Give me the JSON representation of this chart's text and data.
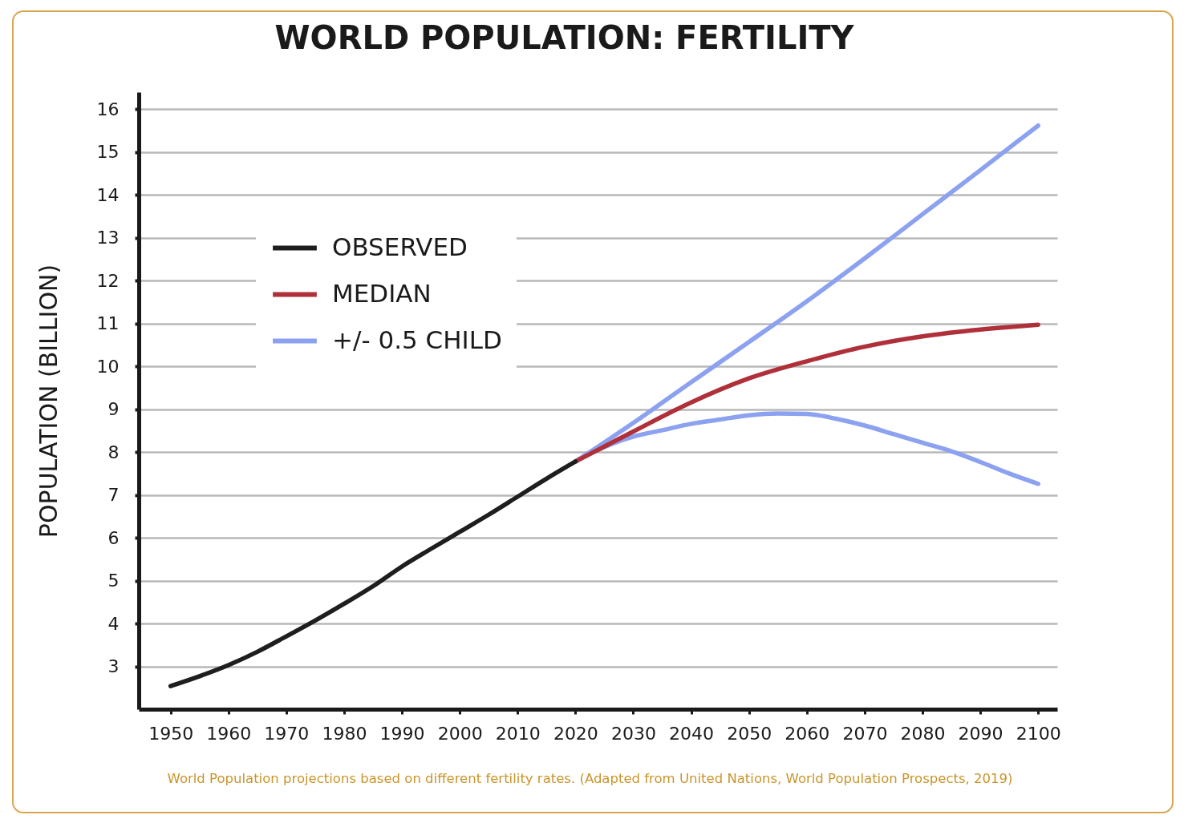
{
  "chart_data": {
    "type": "line",
    "title": "WORLD POPULATION: FERTILITY",
    "ylabel": "POPULATION (BILLION)",
    "annotations": [
      "World Population projections based on different fertility rates. (Adapted from United Nations, World Population Prospects, 2019)"
    ],
    "series": [
      {
        "name": "OBSERVED",
        "color": "#1e1e1e",
        "x": [
          1950,
          1955,
          1960,
          1965,
          1970,
          1975,
          1980,
          1985,
          1990,
          1995,
          2000,
          2005,
          2010,
          2015,
          2020
        ],
        "values": [
          2.54,
          2.77,
          3.03,
          3.34,
          3.7,
          4.07,
          4.46,
          4.87,
          5.33,
          5.74,
          6.14,
          6.54,
          6.96,
          7.38,
          7.78
        ]
      },
      {
        "name": "MEDIAN",
        "color": "#b0303a",
        "x": [
          2020,
          2025,
          2030,
          2040,
          2050,
          2060,
          2070,
          2080,
          2090,
          2100
        ],
        "values": [
          7.78,
          8.13,
          8.48,
          9.16,
          9.72,
          10.12,
          10.46,
          10.7,
          10.86,
          10.97
        ]
      },
      {
        "name": "+/- 0.5 CHILD",
        "color": "#8ca2f0",
        "x": [
          2020,
          2030,
          2040,
          2050,
          2060,
          2070,
          2080,
          2090,
          2100
        ],
        "values": [
          7.78,
          8.68,
          9.63,
          10.57,
          11.52,
          12.52,
          13.55,
          14.58,
          15.62
        ]
      },
      {
        "color": "#8ca2f0",
        "x": [
          2020,
          2025,
          2030,
          2035,
          2040,
          2045,
          2050,
          2055,
          2060,
          2065,
          2070,
          2075,
          2080,
          2085,
          2090,
          2095,
          2100
        ],
        "values": [
          7.78,
          8.12,
          8.36,
          8.51,
          8.66,
          8.76,
          8.86,
          8.9,
          8.89,
          8.78,
          8.62,
          8.42,
          8.22,
          8.02,
          7.77,
          7.5,
          7.26
        ]
      }
    ],
    "xlim": [
      1944.5,
      2103.3
    ],
    "xticks": [
      1950,
      1960,
      1970,
      1980,
      1990,
      2000,
      2010,
      2020,
      2030,
      2040,
      2050,
      2060,
      2070,
      2080,
      2090,
      2100
    ],
    "ylim": [
      2,
      16.4
    ],
    "yticks": [
      3,
      4,
      5,
      6,
      7,
      8,
      9,
      10,
      11,
      12,
      13,
      14,
      15,
      16
    ],
    "grid": "y",
    "legend": "top left"
  }
}
